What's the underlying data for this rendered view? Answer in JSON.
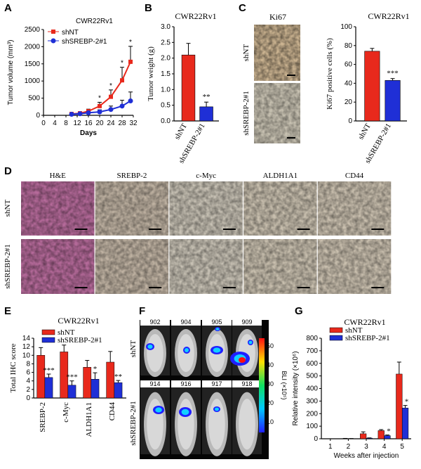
{
  "colors": {
    "red": "#e8291c",
    "blue": "#1f2fd6",
    "he": "#b56a9a",
    "ihc": "#c7b8a4",
    "black": "#000000"
  },
  "panel_labels": {
    "a": "A",
    "b": "B",
    "c": "C",
    "d": "D",
    "e": "E",
    "f": "F",
    "g": "G"
  },
  "legend": {
    "shNT": "shNT",
    "shSREBP": "shSREBP-2#1"
  },
  "panelD": {
    "columns": [
      "H&E",
      "SREBP-2",
      "c-Myc",
      "ALDH1A1",
      "CD44"
    ],
    "rows": [
      "shNT",
      "shSREBP-2#1"
    ]
  },
  "panelC": {
    "image_title": "Ki67",
    "rows": [
      "shNT",
      "shSREBP-2#1"
    ]
  },
  "panelF": {
    "top_ids": [
      "902",
      "904",
      "905",
      "909"
    ],
    "bottom_ids": [
      "914",
      "916",
      "917",
      "918"
    ],
    "row_labels": [
      "shNT",
      "shSREBP-2#1"
    ],
    "colorbar_label": "BLI (×10⁵)",
    "colorbar_ticks": [
      "50",
      "40",
      "30",
      "20",
      "10"
    ]
  },
  "chart_data": [
    {
      "id": "A",
      "type": "line",
      "title": "CWR22Rv1",
      "xlabel": "Days",
      "ylabel": "Tumor volume (mm³)",
      "xlim": [
        0,
        32
      ],
      "ylim": [
        0,
        2500
      ],
      "xticks": [
        "0",
        "4",
        "8",
        "12",
        "16",
        "20",
        "24",
        "28",
        "32"
      ],
      "yticks": [
        "0",
        "500",
        "1000",
        "1500",
        "2000",
        "2500"
      ],
      "x": [
        10,
        13,
        16,
        20,
        24,
        28,
        31
      ],
      "series": [
        {
          "name": "shNT",
          "values": [
            40,
            60,
            120,
            270,
            540,
            1020,
            1560
          ],
          "err": [
            20,
            30,
            60,
            110,
            200,
            380,
            450
          ]
        },
        {
          "name": "shSREBP-2#1",
          "values": [
            30,
            45,
            75,
            100,
            170,
            270,
            420
          ],
          "err": [
            15,
            20,
            40,
            60,
            100,
            170,
            260
          ]
        }
      ],
      "annotations": [
        "*",
        "*",
        "*",
        "*",
        "*"
      ]
    },
    {
      "id": "B",
      "type": "bar",
      "title": "CWR22Rv1",
      "ylabel": "Tumor weight (g)",
      "categories": [
        "shNT",
        "shSREBP-2#1"
      ],
      "values": [
        2.1,
        0.45
      ],
      "err": [
        0.37,
        0.15
      ],
      "ylim": [
        0,
        3.0
      ],
      "yticks": [
        "0.0",
        "0.5",
        "1.0",
        "1.5",
        "2.0",
        "2.5",
        "3.0"
      ],
      "annotation": "**"
    },
    {
      "id": "C",
      "type": "bar",
      "title": "CWR22Rv1",
      "ylabel": "Ki67 positive cells (%)",
      "categories": [
        "shNT",
        "shSREBP-2#1"
      ],
      "values": [
        74,
        43
      ],
      "err": [
        3,
        2
      ],
      "ylim": [
        0,
        100
      ],
      "yticks": [
        "0",
        "20",
        "40",
        "60",
        "80",
        "100"
      ],
      "annotation": "***"
    },
    {
      "id": "E",
      "type": "bar",
      "title": "CWR22Rv1",
      "ylabel": "Total IHC score",
      "categories": [
        "SREBP-2",
        "c-Myc",
        "ALDH1A1",
        "CD44"
      ],
      "series": [
        {
          "name": "shNT",
          "values": [
            10.0,
            10.8,
            7.2,
            8.4
          ],
          "err": [
            1.8,
            1.6,
            1.6,
            2.5
          ]
        },
        {
          "name": "shSREBP-2#1",
          "values": [
            4.8,
            3.0,
            4.4,
            3.6
          ],
          "err": [
            0.8,
            1.0,
            1.5,
            0.5
          ]
        }
      ],
      "ylim": [
        0,
        14
      ],
      "yticks": [
        "0",
        "2",
        "4",
        "6",
        "8",
        "10",
        "12",
        "14"
      ],
      "annotations": [
        "***",
        "***",
        "*",
        "**"
      ]
    },
    {
      "id": "G",
      "type": "bar",
      "title": "CWR22Rv1",
      "ylabel": "Relative intensity (×10⁶)",
      "xlabel": "Weeks after injection",
      "categories": [
        "1",
        "2",
        "3",
        "4",
        "5"
      ],
      "series": [
        {
          "name": "shNT",
          "values": [
            0,
            2,
            40,
            65,
            515
          ],
          "err": [
            0,
            1,
            15,
            8,
            95
          ]
        },
        {
          "name": "shSREBP-2#1",
          "values": [
            0,
            1,
            5,
            25,
            245
          ],
          "err": [
            0,
            1,
            2,
            5,
            20
          ]
        }
      ],
      "ylim": [
        0,
        800
      ],
      "yticks": [
        "0",
        "100",
        "200",
        "300",
        "400",
        "500",
        "600",
        "700",
        "800"
      ],
      "annotations": [
        "",
        "",
        "",
        "*",
        "*"
      ]
    }
  ]
}
